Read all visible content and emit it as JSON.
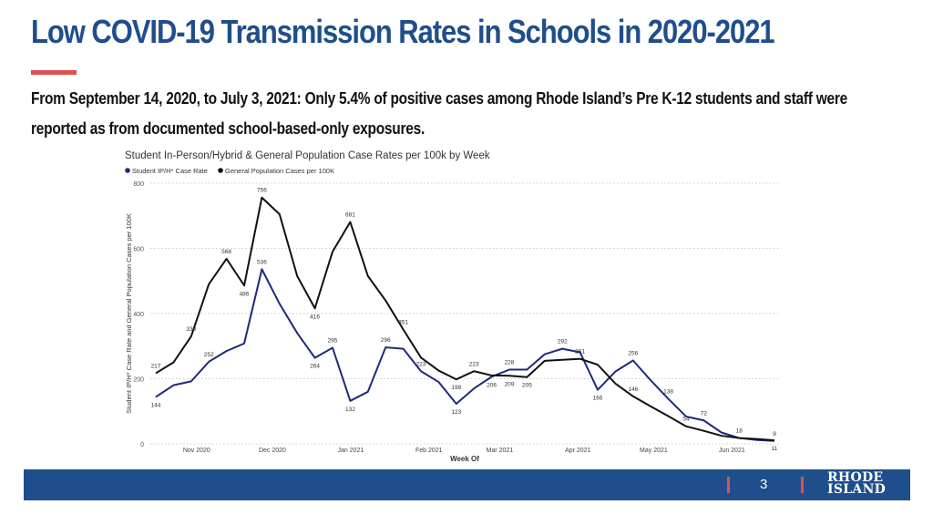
{
  "slide": {
    "title": "Low COVID-19 Transmission Rates in Schools in 2020-2021",
    "subtitle": "From September 14, 2020, to July 3, 2021: Only 5.4% of positive cases among Rhode Island’s Pre K-12 students and staff were reported as from documented school-based-only exposures.",
    "page_number": "3",
    "logo_line1": "RHODE",
    "logo_line2": "ISLAND",
    "accent_color": "#e05050",
    "brand_color": "#1f4e8c"
  },
  "chart_data": {
    "type": "line",
    "title": "Student In-Person/Hybrid & General Population Case Rates per 100k by Week",
    "xlabel": "Week Of",
    "ylabel": "Student IP/H* Case Rate and General Population Cases per 100K",
    "ylim": [
      0,
      800
    ],
    "yticks": [
      "0",
      "200",
      "400",
      "600",
      "800"
    ],
    "xtick_labels": [
      "Nov 2020",
      "Dec 2020",
      "Jan 2021",
      "Feb 2021",
      "Mar 2021",
      "Apr 2021",
      "May 2021",
      "Jun 2021"
    ],
    "grid": true,
    "legend": "top-left",
    "x": [
      "2020-10-18",
      "2020-10-25",
      "2020-11-01",
      "2020-11-08",
      "2020-11-15",
      "2020-11-22",
      "2020-11-29",
      "2020-12-06",
      "2020-12-13",
      "2020-12-20",
      "2020-12-27",
      "2021-01-03",
      "2021-01-10",
      "2021-01-17",
      "2021-01-24",
      "2021-01-31",
      "2021-02-07",
      "2021-02-14",
      "2021-02-21",
      "2021-02-28",
      "2021-03-07",
      "2021-03-14",
      "2021-03-21",
      "2021-03-28",
      "2021-04-04",
      "2021-04-11",
      "2021-04-18",
      "2021-04-25",
      "2021-05-02",
      "2021-05-09",
      "2021-05-16",
      "2021-05-23",
      "2021-05-30",
      "2021-06-06",
      "2021-06-13",
      "2021-06-20"
    ],
    "series": [
      {
        "name": "Student IP/H* Case Rate",
        "color": "#1f2a7a",
        "values": [
          144,
          180,
          192,
          252,
          285,
          308,
          536,
          430,
          340,
          264,
          295,
          132,
          160,
          296,
          292,
          223,
          190,
          123,
          170,
          206,
          228,
          228,
          275,
          292,
          281,
          166,
          222,
          256,
          195,
          138,
          84,
          72,
          35,
          18,
          12,
          9
        ],
        "labeled_indices": [
          0,
          3,
          6,
          9,
          10,
          11,
          13,
          15,
          17,
          19,
          20,
          23,
          25,
          27,
          29,
          31,
          33,
          35
        ]
      },
      {
        "name": "General Population Cases per 100K",
        "color": "#111111",
        "values": [
          217,
          250,
          330,
          490,
          568,
          486,
          756,
          705,
          515,
          416,
          590,
          681,
          515,
          440,
          351,
          265,
          225,
          198,
          223,
          210,
          209,
          205,
          255,
          258,
          261,
          243,
          185,
          146,
          115,
          85,
          54,
          40,
          25,
          18,
          15,
          11
        ],
        "labeled_indices": [
          0,
          2,
          4,
          5,
          6,
          9,
          11,
          14,
          17,
          18,
          20,
          21,
          24,
          27,
          30,
          35
        ]
      }
    ]
  }
}
